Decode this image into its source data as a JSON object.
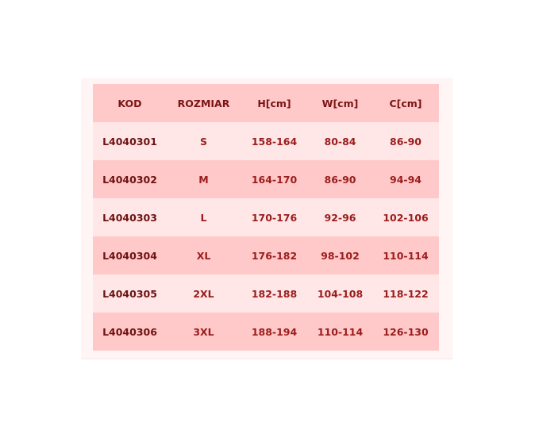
{
  "table": {
    "headers": [
      "KOD",
      "ROZMIAR",
      "H[cm]",
      "W[cm]",
      "C[cm]"
    ],
    "rows": [
      [
        "L4040301",
        "S",
        "158-164",
        "80-84",
        "86-90"
      ],
      [
        "L4040302",
        "M",
        "164-170",
        "86-90",
        "94-94"
      ],
      [
        "L4040303",
        "L",
        "170-176",
        "92-96",
        "102-106"
      ],
      [
        "L4040304",
        "XL",
        "176-182",
        "98-102",
        "110-114"
      ],
      [
        "L4040305",
        "2XL",
        "182-188",
        "104-108",
        "118-122"
      ],
      [
        "L4040306",
        "3XL",
        "188-194",
        "110-114",
        "126-130"
      ]
    ]
  },
  "colors": {
    "header_bg": "#ffc9c9",
    "row_light": "#ffe7e7",
    "row_dark": "#ffc9c9",
    "text": "#9b1c1c"
  }
}
